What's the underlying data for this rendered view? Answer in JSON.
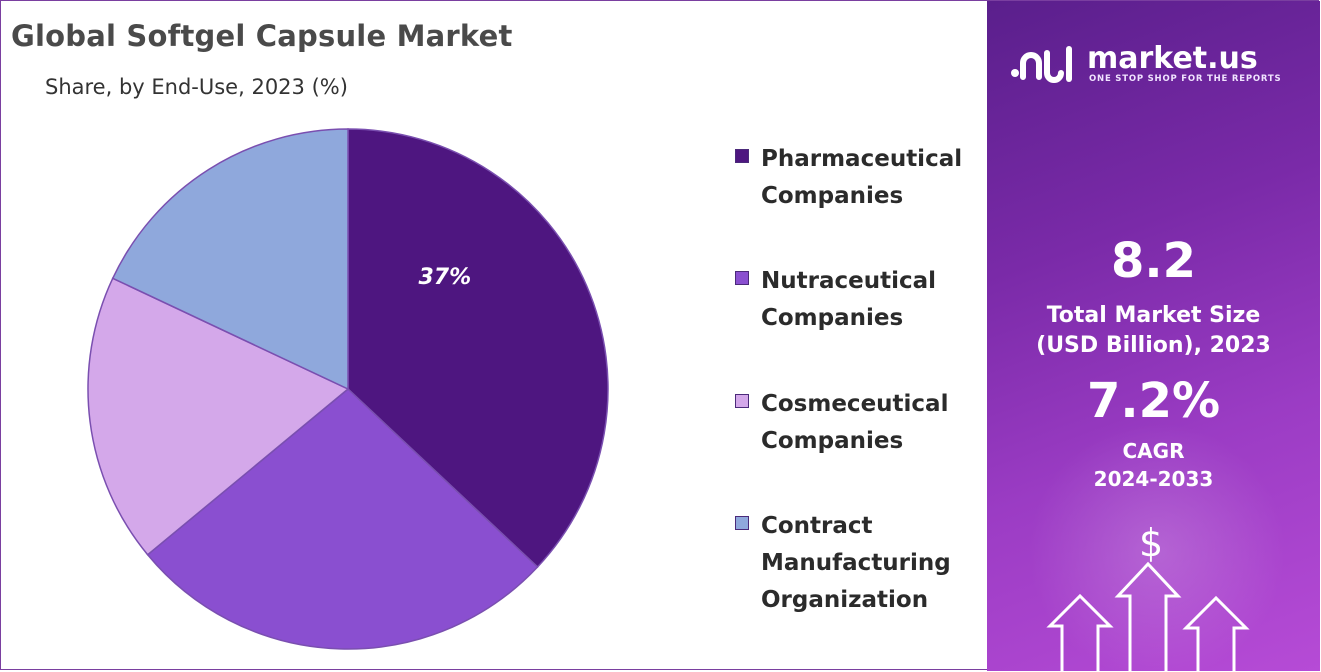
{
  "title": "Global Softgel Capsule Market",
  "subtitle": "Share, by End-Use, 2023 (%)",
  "chart_data": {
    "type": "pie",
    "categories": [
      "Pharmaceutical Companies",
      "Nutraceutical Companies",
      "Cosmeceutical Companies",
      "Contract Manufacturing Organization"
    ],
    "values": [
      37,
      27,
      18,
      18
    ],
    "data_labels": [
      "37%",
      "",
      "",
      ""
    ],
    "colors": [
      "#4e1680",
      "#8a4fd0",
      "#d4a8ea",
      "#8fa8dc"
    ],
    "legend_placement": "right"
  },
  "legend": [
    {
      "label": "Pharmaceutical\nCompanies",
      "color": "#4e1680"
    },
    {
      "label": "Nutraceutical\nCompanies",
      "color": "#8a4fd0"
    },
    {
      "label": "Cosmeceutical\nCompanies",
      "color": "#d4a8ea"
    },
    {
      "label": "Contract\nManufacturing\nOrganization",
      "color": "#8fa8dc"
    }
  ],
  "sidebar": {
    "brand_name": "market.us",
    "brand_tagline": "ONE STOP SHOP FOR THE REPORTS",
    "market_size_value": "8.2",
    "market_size_label": "Total Market Size\n(USD Billion), 2023",
    "cagr_value": "7.2%",
    "cagr_label": "CAGR\n2024-2033",
    "dollar_symbol": "$"
  }
}
